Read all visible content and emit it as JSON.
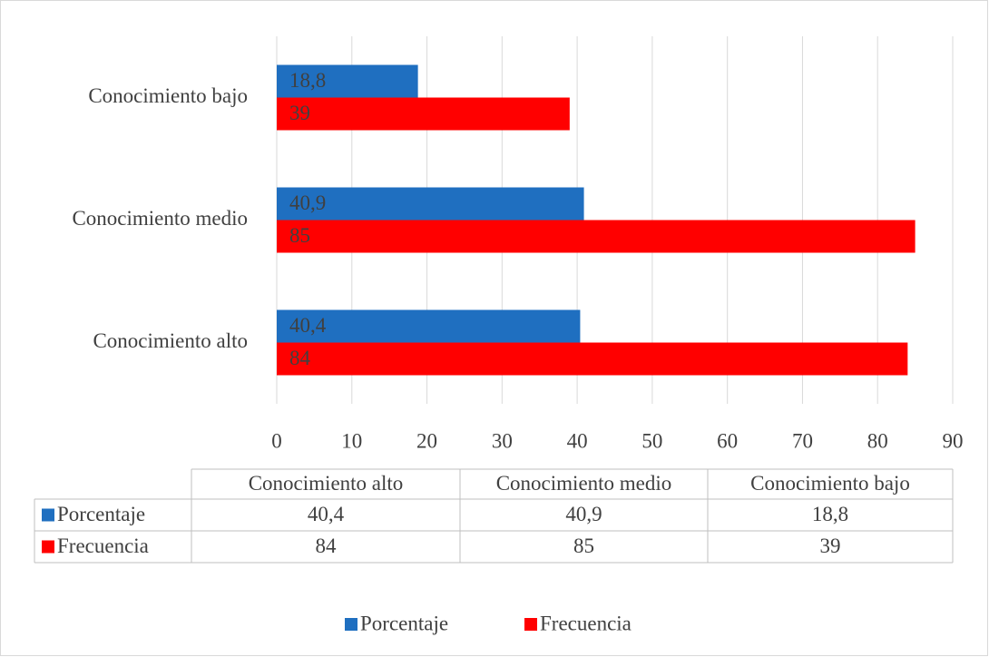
{
  "chart_data": {
    "type": "hbar",
    "categories": [
      "Conocimiento alto",
      "Conocimiento medio",
      "Conocimiento bajo"
    ],
    "series": [
      {
        "name": "Porcentaje",
        "color": "#1f6fc0",
        "values": [
          40.4,
          40.9,
          18.8
        ],
        "value_labels": [
          "40,4",
          "40,9",
          "18,8"
        ]
      },
      {
        "name": "Frecuencia",
        "color": "#ff0000",
        "values": [
          84,
          85,
          39
        ]
      }
    ],
    "xlim": [
      0,
      90
    ],
    "xticks": [
      0,
      10,
      20,
      30,
      40,
      50,
      60,
      70,
      80,
      90
    ],
    "grid": true,
    "legend": "bottom",
    "data_table": true
  }
}
